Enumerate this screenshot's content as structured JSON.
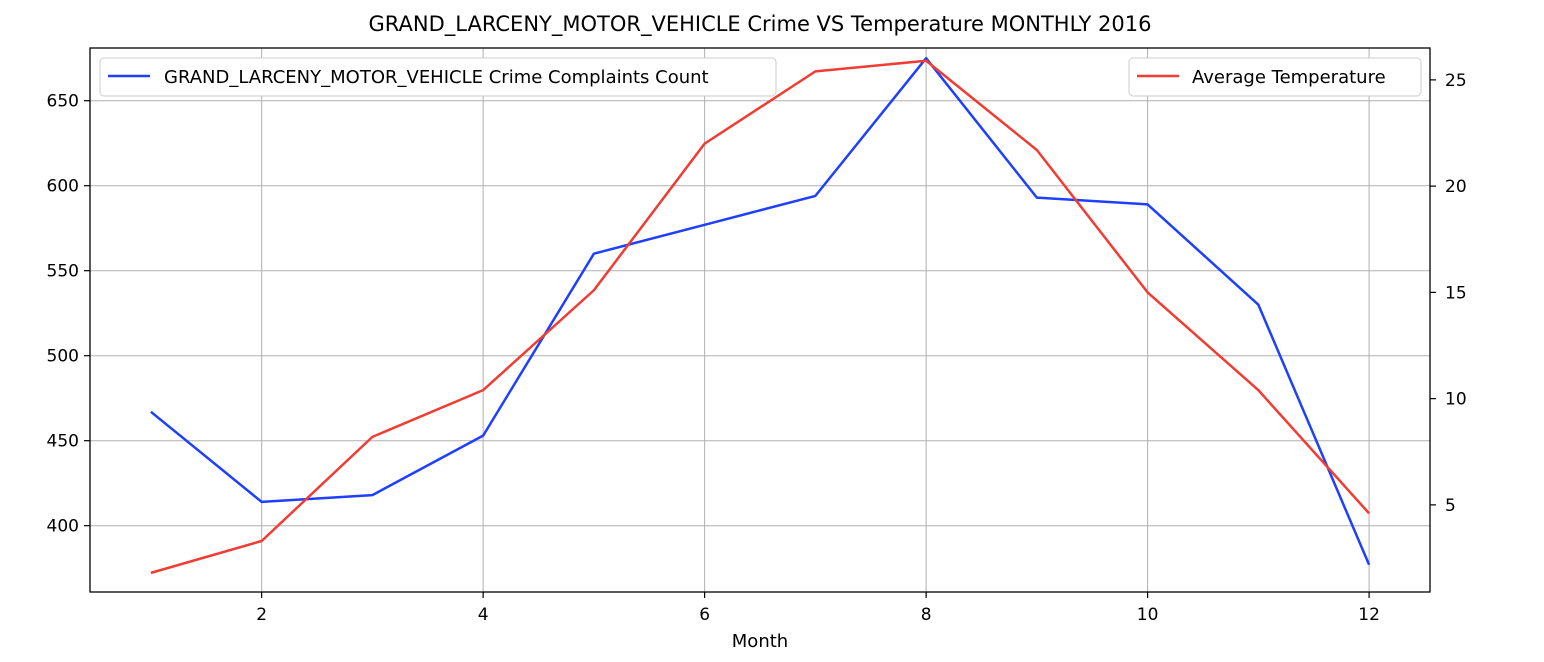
{
  "chart_data": {
    "type": "line",
    "title": "GRAND_LARCENY_MOTOR_VEHICLE Crime  VS Temperature MONTHLY 2016",
    "xlabel": "Month",
    "x": [
      1,
      2,
      3,
      4,
      5,
      6,
      7,
      8,
      9,
      10,
      11,
      12
    ],
    "x_ticks": [
      2,
      4,
      6,
      8,
      10,
      12
    ],
    "xlim": [
      0.45,
      12.55
    ],
    "grid": true,
    "y_left": {
      "lim": [
        361,
        681
      ],
      "ticks": [
        400,
        450,
        500,
        550,
        600,
        650
      ]
    },
    "y_right": {
      "lim": [
        0.9,
        26.5
      ],
      "ticks": [
        5,
        10,
        15,
        20,
        25
      ]
    },
    "series": [
      {
        "name": "GRAND_LARCENY_MOTOR_VEHICLE Crime Complaints Count",
        "axis": "left",
        "color": "#1f3fff",
        "values": [
          467,
          414,
          418,
          453,
          560,
          577,
          594,
          675,
          593,
          589,
          530,
          377
        ],
        "legend_position": "upper-left"
      },
      {
        "name": "Average Temperature",
        "axis": "right",
        "color": "#f03c32",
        "values": [
          1.8,
          3.3,
          8.2,
          10.4,
          15.1,
          22.0,
          25.4,
          25.9,
          21.7,
          15.0,
          10.4,
          4.6
        ],
        "legend_position": "upper-right"
      }
    ]
  }
}
